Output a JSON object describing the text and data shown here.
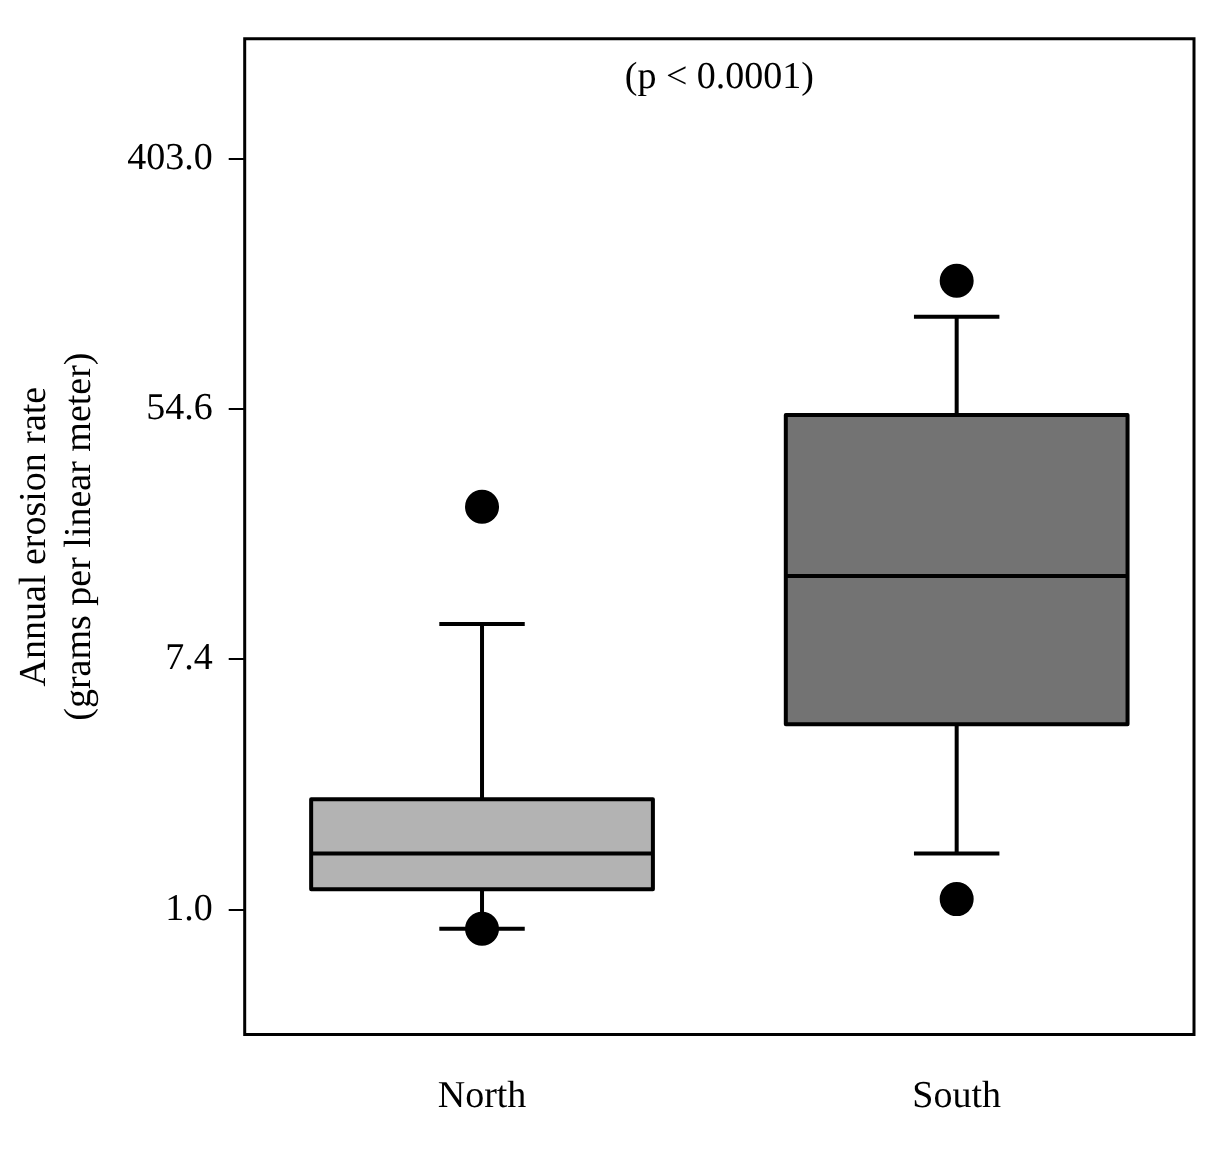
{
  "chart_data": {
    "type": "box",
    "ylabel": "Annual erosion rate\n(grams per linear meter)",
    "annotations": [
      "(p < 0.0001)"
    ],
    "categories": [
      "North",
      "South"
    ],
    "colors": [
      "#b3b3b3",
      "#737373"
    ],
    "boxes": [
      {
        "low": 0.86,
        "q1": 1.18,
        "median": 1.57,
        "q3": 2.42,
        "high": 9.8,
        "outliers": [
          25,
          0.86
        ]
      },
      {
        "low": 1.57,
        "q1": 4.4,
        "median": 14.4,
        "q3": 52,
        "high": 114,
        "outliers": [
          152,
          1.09
        ]
      }
    ],
    "log": true,
    "ylim": [
      0.37,
      1050
    ],
    "yticks": [
      {
        "value": 1,
        "label": "1.0"
      },
      {
        "value": 7.389,
        "label": "7.4"
      },
      {
        "value": 54.6,
        "label": "54.6"
      },
      {
        "value": 403,
        "label": "403.0"
      }
    ],
    "grid": false
  }
}
